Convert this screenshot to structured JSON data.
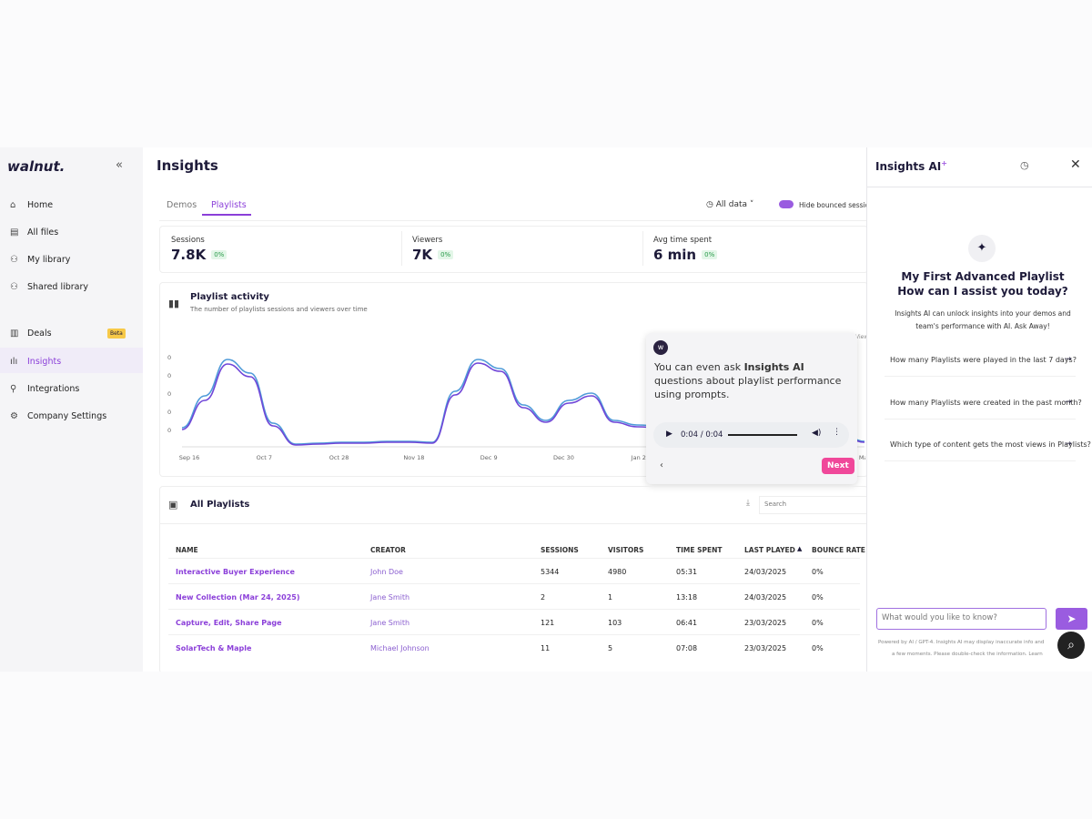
{
  "sidebar": {
    "logo": "walnut.",
    "nav": [
      "Home",
      "All files",
      "My library",
      "Shared library",
      "Deals",
      "Insights",
      "Integrations",
      "Company Settings"
    ],
    "badge": "Beta"
  },
  "main": {
    "title": "Insights",
    "tabs": [
      "Demos",
      "Playlists"
    ],
    "filter": "All data",
    "toggle": "Hide bounced sessio",
    "stats": [
      {
        "label": "Sessions",
        "value": "7.8K",
        "change": "0%"
      },
      {
        "label": "Viewers",
        "value": "7K",
        "change": "0%"
      },
      {
        "label": "Avg time spent",
        "value": "6 min",
        "change": "0%"
      }
    ],
    "activity": {
      "title": "Playlist activity",
      "subtitle": "The number of playlists sessions and viewers over time",
      "legend": "View"
    },
    "tooltip": {
      "text_before": "You can even ask ",
      "bold": "Insights AI",
      "text_after": " questions about playlist performance using prompts.",
      "audio_time": "0:04 / 0:04",
      "button": "Next"
    },
    "table": {
      "title": "All Playlists",
      "search": "Search",
      "columns": [
        "NAME",
        "CREATOR",
        "SESSIONS",
        "VISITORS",
        "TIME SPENT",
        "LAST PLAYED",
        "BOUNCE RATE"
      ],
      "rows": [
        [
          "Interactive Buyer Experience",
          "John Doe",
          "5344",
          "4980",
          "05:31",
          "24/03/2025",
          "0%"
        ],
        [
          "New Collection (Mar 24, 2025)",
          "Jane Smith",
          "2",
          "1",
          "13:18",
          "24/03/2025",
          "0%"
        ],
        [
          "Capture, Edit, Share Page",
          "Jane Smith",
          "121",
          "103",
          "06:41",
          "23/03/2025",
          "0%"
        ],
        [
          "SolarTech & Maple",
          "Michael Johnson",
          "11",
          "5",
          "07:08",
          "23/03/2025",
          "0%"
        ]
      ]
    }
  },
  "chart_data": {
    "type": "line",
    "x_tick_labels": [
      "Sep 16",
      "Oct 7",
      "Oct 28",
      "Nov 18",
      "Dec 9",
      "Dec 30",
      "Jan 2",
      null,
      null,
      "Ma"
    ],
    "y_tick_labels": [
      "0",
      "0",
      "0",
      "0",
      "0"
    ],
    "ylim": [
      0,
      120
    ],
    "series": [
      {
        "color": "#4f9bd9",
        "values": [
          20,
          55,
          95,
          80,
          25,
          2,
          3,
          4,
          4,
          5,
          5,
          4,
          60,
          95,
          85,
          45,
          28,
          50,
          58,
          28,
          23,
          22,
          21,
          20,
          19,
          18,
          17,
          16,
          15,
          14,
          5
        ]
      },
      {
        "color": "#7046d8",
        "values": [
          18,
          50,
          90,
          76,
          22,
          1,
          2,
          3,
          3,
          4,
          4,
          3,
          56,
          91,
          82,
          42,
          26,
          47,
          55,
          26,
          21,
          20,
          19,
          18,
          17,
          16,
          15,
          14,
          13,
          12,
          4
        ]
      }
    ]
  },
  "panel": {
    "title": "Insights AI",
    "heading": [
      "My First Advanced Playlist",
      "How can I assist you today?"
    ],
    "description": "Insights AI can unlock insights into your demos and team's performance with AI. Ask Away!",
    "suggestions": [
      "How many Playlists were played in the last 7 days?",
      "How many Playlists were created in the past month?",
      "Which type of content gets the most views in Playlists?"
    ],
    "input": "What would you like to know?",
    "footer": [
      "Powered by AI / GPT-4. Insights AI may display inaccurate info and",
      "a few moments. Please double-check the information. Learn"
    ]
  }
}
